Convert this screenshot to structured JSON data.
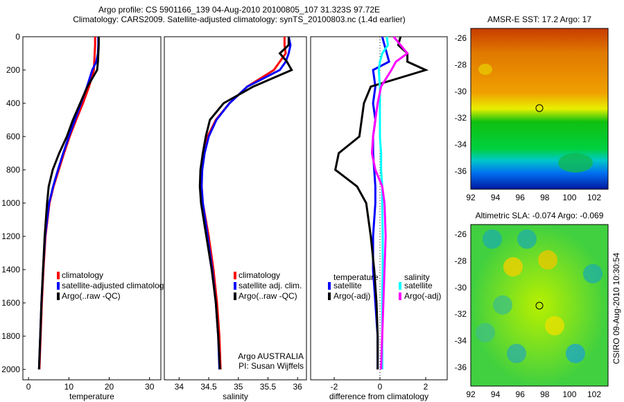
{
  "title_line1": "Argo profile: CS 5901166_139 04-Aug-2010 20100805_107 31.323S 97.72E",
  "title_line2": "Climatology: CARS2009. Satellite-adjusted climatology: synTS_20100803.nc (1.4d earlier)",
  "side_text": "CSIRO 09-Aug-2010 10:30:54",
  "colors": {
    "climatology": "#ff0000",
    "satellite": "#0000ff",
    "argo": "#000000",
    "sal_satellite": "#00ffff",
    "sal_argo": "#ff00ff"
  },
  "chart_data": [
    {
      "type": "line",
      "xlabel": "temperature",
      "ylabel": "",
      "xlim": [
        -2,
        32
      ],
      "ylim": [
        2000,
        0
      ],
      "xticks": [
        "0",
        "10",
        "20",
        "30"
      ],
      "yticks": [
        "0",
        "200",
        "400",
        "600",
        "800",
        "1000",
        "1200",
        "1400",
        "1600",
        "1800",
        "2000"
      ],
      "y": [
        0,
        50,
        100,
        150,
        200,
        300,
        400,
        500,
        600,
        700,
        800,
        900,
        1000,
        1200,
        1400,
        1600,
        1800,
        2000
      ],
      "series": [
        {
          "name": "climatology",
          "values": [
            16.5,
            16.5,
            16.4,
            16.3,
            16.2,
            15.0,
            13.5,
            11.8,
            10.2,
            8.8,
            7.5,
            6.2,
            5.2,
            4.2,
            3.7,
            3.3,
            3.0,
            2.7
          ]
        },
        {
          "name": "satellite-adjusted climatology",
          "values": [
            17.3,
            17.3,
            17.2,
            16.8,
            15.8,
            14.5,
            13.0,
            11.5,
            10.0,
            8.6,
            7.3,
            6.1,
            5.1,
            4.1,
            3.6,
            3.2,
            2.9,
            2.6
          ]
        },
        {
          "name": "Argo(..raw -QC)",
          "values": [
            17.4,
            17.4,
            17.3,
            17.2,
            17.0,
            14.6,
            12.8,
            11.0,
            9.5,
            7.6,
            6.0,
            5.0,
            4.6,
            4.0,
            3.6,
            3.2,
            2.9,
            2.6
          ]
        }
      ],
      "legend": "bottom-right"
    },
    {
      "type": "line",
      "xlabel": "salinity",
      "xlim": [
        33.75,
        36.1
      ],
      "ylim": [
        2000,
        0
      ],
      "xticks": [
        "34",
        "34.5",
        "35",
        "35.5",
        "36"
      ],
      "y": [
        0,
        50,
        100,
        150,
        200,
        300,
        400,
        500,
        600,
        700,
        800,
        900,
        1000,
        1200,
        1400,
        1600,
        1800,
        2000
      ],
      "series": [
        {
          "name": "climatology",
          "values": [
            35.78,
            35.78,
            35.8,
            35.7,
            35.6,
            35.15,
            34.85,
            34.62,
            34.48,
            34.42,
            34.38,
            34.38,
            34.4,
            34.5,
            34.58,
            34.64,
            34.68,
            34.7
          ]
        },
        {
          "name": "satellite adj. clim.",
          "values": [
            35.85,
            35.88,
            35.85,
            35.8,
            35.7,
            35.15,
            34.85,
            34.63,
            34.5,
            34.43,
            34.39,
            34.38,
            34.4,
            34.48,
            34.56,
            34.62,
            34.66,
            34.68
          ]
        },
        {
          "name": "Argo(..raw -QC)",
          "values": [
            35.85,
            35.85,
            35.7,
            35.82,
            35.9,
            35.25,
            34.75,
            34.52,
            34.45,
            34.4,
            34.36,
            34.35,
            34.37,
            34.46,
            34.55,
            34.62,
            34.66,
            34.69
          ]
        }
      ],
      "annotation": [
        "Argo AUSTRALIA",
        "PI: Susan Wijffels"
      ]
    },
    {
      "type": "line",
      "xlabel": "difference from climatology",
      "xlim": [
        -3,
        3
      ],
      "ylim": [
        2000,
        0
      ],
      "xticks": [
        "-2",
        "0",
        "2"
      ],
      "y": [
        0,
        50,
        100,
        150,
        200,
        300,
        400,
        500,
        600,
        700,
        800,
        900,
        1000,
        1200,
        1400,
        1600,
        1800,
        2000
      ],
      "legend_headers": [
        "temperature",
        "salinity"
      ],
      "series": [
        {
          "name": "satellite",
          "group": "temperature",
          "values": [
            0.1,
            0.2,
            0.3,
            0.4,
            -0.3,
            -0.2,
            -0.3,
            -0.2,
            -0.3,
            -0.3,
            -0.25,
            -0.2,
            -0.2,
            -0.3,
            -0.3,
            -0.2,
            -0.1,
            -0.1
          ]
        },
        {
          "name": "Argo(-adj)",
          "group": "temperature",
          "values": [
            0.9,
            0.8,
            1.2,
            1.2,
            2.0,
            -0.4,
            -0.7,
            -0.8,
            -0.9,
            -1.8,
            -1.95,
            -1.0,
            -0.6,
            -0.4,
            -0.25,
            -0.15,
            -0.1,
            -0.1
          ]
        },
        {
          "name": "satellite",
          "group": "salinity",
          "values": [
            0.3,
            0.35,
            0.1,
            0,
            -0.05,
            0,
            0,
            0,
            0,
            0.05,
            0.05,
            0.1,
            0.1,
            0.12,
            0.12,
            0.1,
            0.1,
            0.1
          ]
        },
        {
          "name": "Argo(-adj)",
          "group": "salinity",
          "values": [
            0.6,
            0.9,
            1.2,
            0.7,
            0.5,
            0.05,
            -0.1,
            -0.2,
            -0.3,
            -0.35,
            -0.2,
            0.1,
            0.2,
            0.25,
            0.2,
            0.15,
            0.1,
            0.05
          ]
        }
      ]
    },
    {
      "type": "heatmap",
      "title": "AMSR-E SST: 17.2 Argo: 17",
      "xticks": [
        "92",
        "94",
        "96",
        "98",
        "100",
        "102"
      ],
      "yticks": [
        "-26",
        "-28",
        "-30",
        "-32",
        "-34",
        "-36"
      ],
      "marker": [
        97.72,
        -31.323
      ]
    },
    {
      "type": "heatmap",
      "title": "Altimetric SLA: -0.074 Argo: -0.069",
      "xticks": [
        "92",
        "94",
        "96",
        "98",
        "100",
        "102"
      ],
      "yticks": [
        "-26",
        "-28",
        "-30",
        "-32",
        "-34",
        "-36"
      ],
      "marker": [
        97.72,
        -31.323
      ]
    }
  ]
}
